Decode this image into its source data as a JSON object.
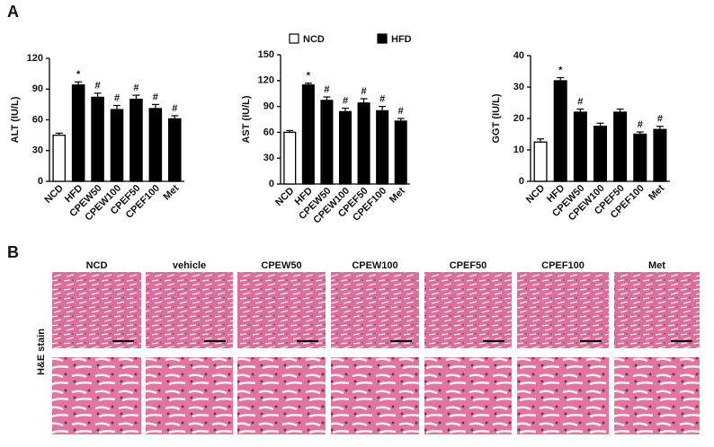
{
  "panel_labels": [
    "A",
    "B"
  ],
  "legend": [
    {
      "name": "NCD",
      "color": "#ffffff"
    },
    {
      "name": "HFD",
      "color": "#000000"
    }
  ],
  "chart_data": [
    {
      "type": "bar",
      "y_label": "ALT (IU/L)",
      "categories": [
        "NCD",
        "HFD",
        "CPEW50",
        "CPEW100",
        "CPEF50",
        "CPEF100",
        "Met"
      ],
      "values": [
        45,
        94,
        82,
        70,
        80,
        71,
        61
      ],
      "errors": [
        2,
        3,
        4,
        4,
        4,
        4,
        3
      ],
      "colors": [
        "#ffffff",
        "#000000",
        "#000000",
        "#000000",
        "#000000",
        "#000000",
        "#000000"
      ],
      "annotations": [
        null,
        "*",
        "#",
        "#",
        "#",
        "#",
        "#"
      ],
      "ylim": [
        0,
        120
      ],
      "yticks": [
        0,
        30,
        60,
        90,
        120
      ]
    },
    {
      "type": "bar",
      "y_label": "AST (IU/L)",
      "categories": [
        "NCD",
        "HFD",
        "CPEW50",
        "CPEW100",
        "CPEF50",
        "CPEF100",
        "Met"
      ],
      "values": [
        60,
        115,
        97,
        84,
        94,
        85,
        73
      ],
      "errors": [
        2,
        2,
        4,
        4,
        5,
        5,
        3
      ],
      "colors": [
        "#ffffff",
        "#000000",
        "#000000",
        "#000000",
        "#000000",
        "#000000",
        "#000000"
      ],
      "annotations": [
        null,
        "*",
        "#",
        "#",
        "#",
        "#",
        "#"
      ],
      "ylim": [
        0,
        150
      ],
      "yticks": [
        0,
        30,
        60,
        90,
        120,
        150
      ]
    },
    {
      "type": "bar",
      "y_label": "GGT (IU/L)",
      "categories": [
        "NCD",
        "HFD",
        "CPEW50",
        "CPEW100",
        "CPEF50",
        "CPEF100",
        "Met"
      ],
      "values": [
        12.5,
        32,
        22,
        17.5,
        22,
        15,
        16.5
      ],
      "errors": [
        1,
        1,
        1,
        1,
        1,
        0.7,
        1
      ],
      "colors": [
        "#ffffff",
        "#000000",
        "#000000",
        "#000000",
        "#000000",
        "#000000",
        "#000000"
      ],
      "annotations": [
        null,
        "*",
        "#",
        null,
        null,
        "#",
        "#"
      ],
      "ylim": [
        0,
        40
      ],
      "yticks": [
        0,
        10,
        20,
        30,
        40
      ]
    }
  ],
  "histology": {
    "row_label": "H&E stain",
    "columns": [
      "NCD",
      "vehicle",
      "CPEW50",
      "CPEW100",
      "CPEF50",
      "CPEF100",
      "Met"
    ]
  }
}
